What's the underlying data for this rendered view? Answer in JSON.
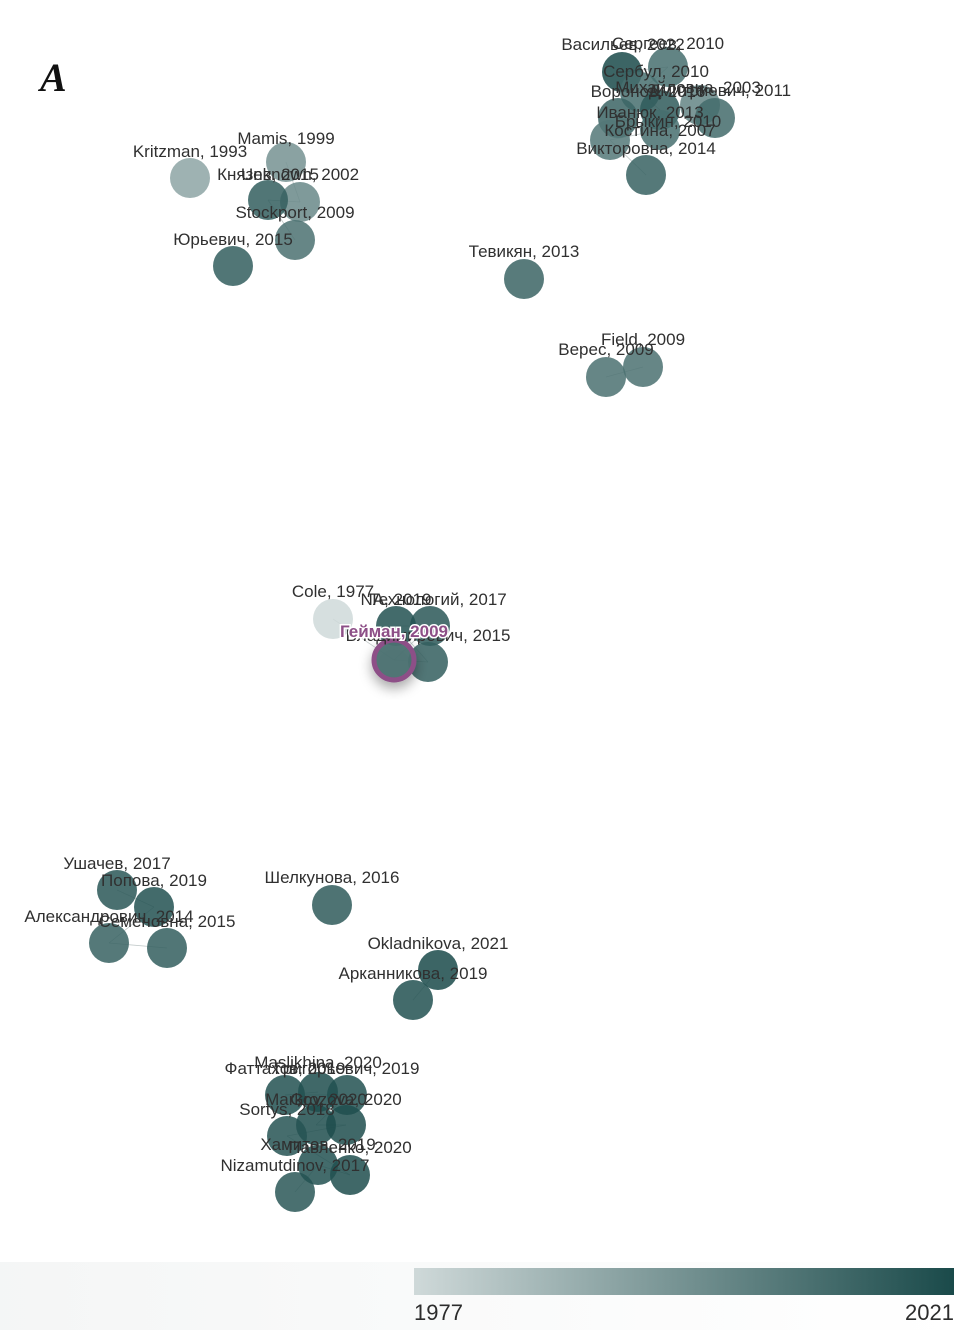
{
  "panel": {
    "letter": "A"
  },
  "color_scale": {
    "min_label": "1977",
    "max_label": "2021",
    "min_year": 1977,
    "max_year": 2021,
    "low_color": "#cfd9d9",
    "high_color": "#1a4a4a"
  },
  "selected_node": "Гейман, 2009",
  "selected_color": "#8d4f87",
  "nodes": [
    {
      "label": "Васильев, 2022",
      "year": 2022
    },
    {
      "label": "Сергеев, 2010",
      "year": 2010
    },
    {
      "label": "Сербул, 2010",
      "year": 2010
    },
    {
      "label": "Михайловна, 2003",
      "year": 2003
    },
    {
      "label": "Воронов, 2016",
      "year": 2016
    },
    {
      "label": "Дмитриевич, 2011",
      "year": 2011
    },
    {
      "label": "Иванюк, 2013",
      "year": 2013
    },
    {
      "label": "Костина, 2007",
      "year": 2007
    },
    {
      "label": "Брыкин, 2010",
      "year": 2010
    },
    {
      "label": "Викторовна, 2014",
      "year": 2014
    },
    {
      "label": "Mamis, 1999",
      "year": 1999
    },
    {
      "label": "Kritzman, 1993",
      "year": 1993
    },
    {
      "label": "Unknown, 2002",
      "year": 2002
    },
    {
      "label": "Князев, 2015",
      "year": 2015
    },
    {
      "label": "Stockport, 2009",
      "year": 2009
    },
    {
      "label": "Юрьевич, 2015",
      "year": 2015
    },
    {
      "label": "Тевикян, 2013",
      "year": 2013
    },
    {
      "label": "Field, 2009",
      "year": 2009
    },
    {
      "label": "Верес, 2009",
      "year": 2009
    },
    {
      "label": "Cole, 1977",
      "year": 1977
    },
    {
      "label": "Технологий, 2017",
      "year": 2017
    },
    {
      "label": "NA, 2019",
      "year": 2019
    },
    {
      "label": "Владимирович, 2015",
      "year": 2015
    },
    {
      "label": "Гейман, 2009",
      "year": 2009
    },
    {
      "label": "Ушачев, 2017",
      "year": 2017
    },
    {
      "label": "Попова, 2019",
      "year": 2019
    },
    {
      "label": "Александрович, 2014",
      "year": 2014
    },
    {
      "label": "Семеновна, 2015",
      "year": 2015
    },
    {
      "label": "Шелкунова, 2016",
      "year": 2016
    },
    {
      "label": "Okladnikova, 2021",
      "year": 2021
    },
    {
      "label": "Арканникова, 2019",
      "year": 2019
    },
    {
      "label": "Maslikhina, 2020",
      "year": 2020
    },
    {
      "label": "Фаттахов, 2019",
      "year": 2019
    },
    {
      "label": "Григорьевич, 2019",
      "year": 2019
    },
    {
      "label": "Markov, 2020",
      "year": 2020
    },
    {
      "label": "Grozova, 2020",
      "year": 2020
    },
    {
      "label": "Sortys, 2018",
      "year": 2018
    },
    {
      "label": "Павленко, 2020",
      "year": 2020
    },
    {
      "label": "Nizamutdinov, 2017",
      "year": 2017
    },
    {
      "label": "Хамитов, 2019",
      "year": 2019
    }
  ],
  "edges": [
    [
      "Сергеев, 2010",
      "Сербул, 2010"
    ],
    [
      "Сербул, 2010",
      "Воронов, 2016"
    ],
    [
      "Воронов, 2016",
      "Иванюк, 2013"
    ],
    [
      "Иванюк, 2013",
      "Брыкин, 2010"
    ],
    [
      "Брыкин, 2010",
      "Костина, 2007"
    ],
    [
      "Костина, 2007",
      "Викторовна, 2014"
    ],
    [
      "Михайловна, 2003",
      "Дмитриевич, 2011"
    ],
    [
      "Васильев, 2022",
      "Сергеев, 2010"
    ],
    [
      "Mamis, 1999",
      "Unknown, 2002"
    ],
    [
      "Unknown, 2002",
      "Князев, 2015"
    ],
    [
      "Князев, 2015",
      "Stockport, 2009"
    ],
    [
      "Field, 2009",
      "Верес, 2009"
    ],
    [
      "Cole, 1977",
      "Гейман, 2009"
    ],
    [
      "Технологий, 2017",
      "NA, 2019"
    ],
    [
      "NA, 2019",
      "Владимирович, 2015"
    ],
    [
      "Владимирович, 2015",
      "Гейман, 2009"
    ],
    [
      "Технологий, 2017",
      "Гейман, 2009"
    ],
    [
      "Ушачев, 2017",
      "Попова, 2019"
    ],
    [
      "Попова, 2019",
      "Александрович, 2014"
    ],
    [
      "Александрович, 2014",
      "Семеновна, 2015"
    ],
    [
      "Okladnikova, 2021",
      "Арканникова, 2019"
    ],
    [
      "Maslikhina, 2020",
      "Фаттахов, 2019"
    ],
    [
      "Фаттахов, 2019",
      "Григорьевич, 2019"
    ],
    [
      "Григорьевич, 2019",
      "Markov, 2020"
    ],
    [
      "Markov, 2020",
      "Grozova, 2020"
    ],
    [
      "Grozova, 2020",
      "Sortys, 2018"
    ],
    [
      "Sortys, 2018",
      "Павленко, 2020"
    ],
    [
      "Павленко, 2020",
      "Хамитов, 2019"
    ],
    [
      "Хамитов, 2019",
      "Nizamutdinov, 2017"
    ]
  ]
}
